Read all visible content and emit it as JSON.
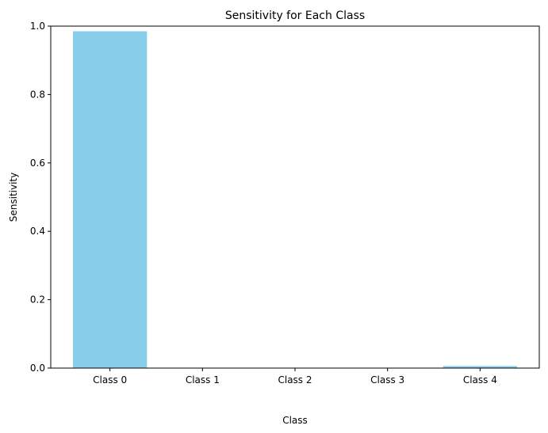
{
  "chart_data": {
    "type": "bar",
    "title": "Sensitivity for Each Class",
    "xlabel": "Class",
    "ylabel": "Sensitivity",
    "categories": [
      "Class 0",
      "Class 1",
      "Class 2",
      "Class 3",
      "Class 4"
    ],
    "values": [
      0.985,
      0.0,
      0.0,
      0.0,
      0.006
    ],
    "ylim": [
      0,
      1
    ],
    "yticks": [
      "0.0",
      "0.2",
      "0.4",
      "0.6",
      "0.8",
      "1.0"
    ],
    "bar_color": "#87ceeb",
    "grid": false,
    "legend": "none"
  }
}
